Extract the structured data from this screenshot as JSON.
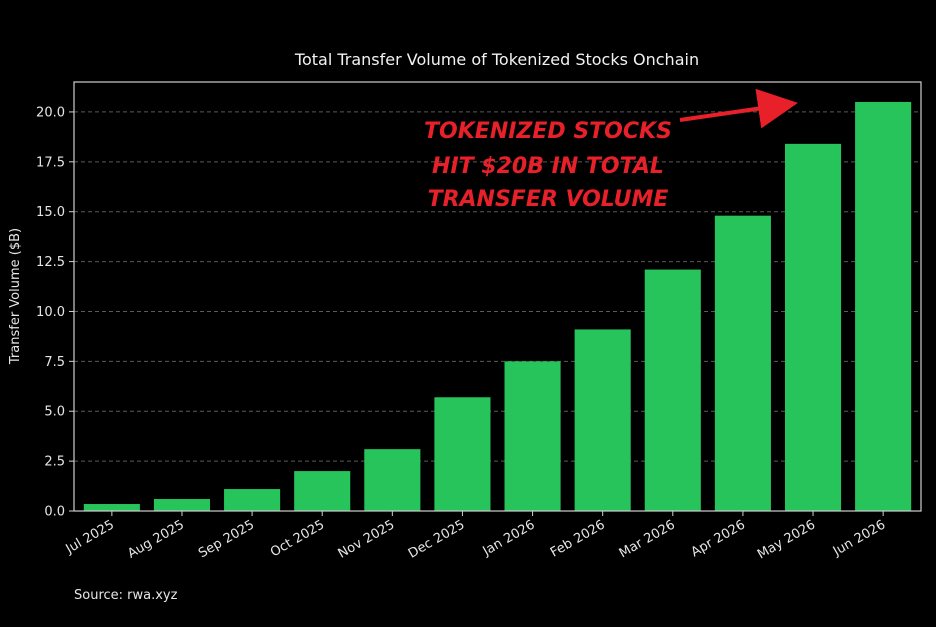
{
  "chart_data": {
    "type": "bar",
    "title": "Total Transfer Volume of Tokenized Stocks Onchain",
    "xlabel": "",
    "ylabel": "Transfer Volume ($B)",
    "categories": [
      "Jul 2025",
      "Aug 2025",
      "Sep 2025",
      "Oct 2025",
      "Nov 2025",
      "Dec 2025",
      "Jan 2026",
      "Feb 2026",
      "Mar 2026",
      "Apr 2026",
      "May 2026",
      "Jun 2026"
    ],
    "values": [
      0.35,
      0.6,
      1.1,
      2.0,
      3.1,
      5.7,
      7.5,
      9.1,
      12.1,
      14.8,
      18.4,
      20.5
    ],
    "ylim": [
      0,
      21.5
    ],
    "yticks": [
      0.0,
      2.5,
      5.0,
      7.5,
      10.0,
      12.5,
      15.0,
      17.5,
      20.0
    ],
    "ytick_labels": [
      "0.0",
      "2.5",
      "5.0",
      "7.5",
      "10.0",
      "12.5",
      "15.0",
      "17.5",
      "20.0"
    ],
    "grid": "horizontal dashed",
    "bar_color": "#27c45c",
    "background": "#000000",
    "annotation": {
      "lines": [
        "TOKENIZED STOCKS",
        "HIT $20B IN TOTAL",
        "TRANSFER VOLUME"
      ],
      "color": "#e8202a",
      "points_to": "Jun 2026"
    },
    "source": "Source: rwa.xyz"
  }
}
